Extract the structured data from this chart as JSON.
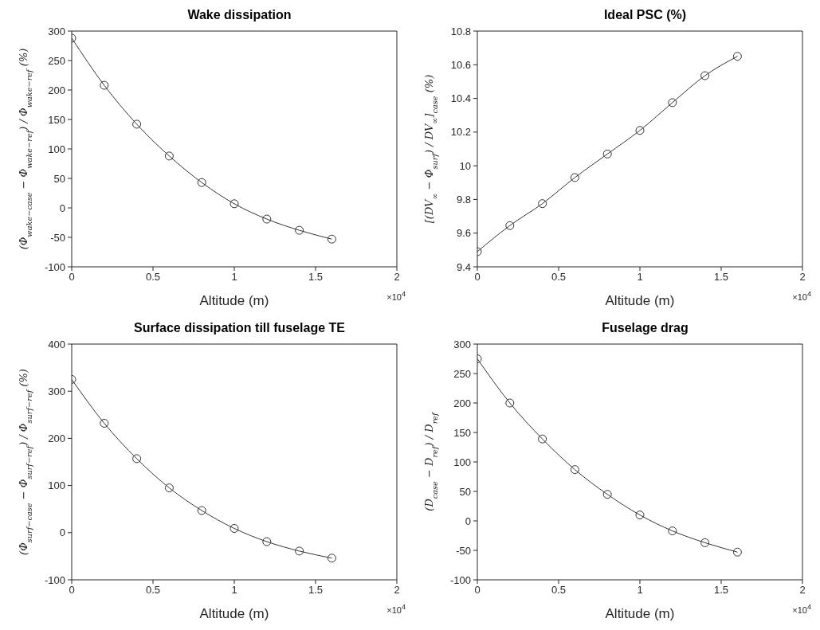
{
  "chart_data": [
    {
      "type": "line",
      "title": "Wake dissipation",
      "xlabel": "Altitude (m)",
      "ylabel": "(Φ$_{wake−case}$ − Φ$_{wake−ref}$) / Φ$_{wake−ref}$ (%)",
      "x": [
        0,
        0.2,
        0.4,
        0.6,
        0.8,
        1,
        1.2,
        1.4,
        1.6
      ],
      "series": [
        {
          "color": "#333333",
          "values": [
            288,
            208,
            142,
            88,
            43,
            7,
            -19,
            -38,
            -53
          ]
        }
      ],
      "xlim": [
        0,
        2
      ],
      "xticks": [
        0,
        0.5,
        1,
        1.5,
        2
      ],
      "ylim": [
        -100,
        300
      ],
      "yticks": [
        -100,
        -50,
        0,
        50,
        100,
        150,
        200,
        250,
        300
      ],
      "marker": "circle",
      "annotations": [
        "×10$^{4}$"
      ]
    },
    {
      "type": "line",
      "title": "Ideal PSC (%)",
      "xlabel": "Altitude (m)",
      "ylabel": "[(DV$_{∞}$ − Φ$_{surf}$) / DV$_{∞}$]$_{case}$ (%)",
      "x": [
        0,
        0.2,
        0.4,
        0.6,
        0.8,
        1,
        1.2,
        1.4,
        1.6
      ],
      "series": [
        {
          "color": "#333333",
          "values": [
            9.49,
            9.645,
            9.775,
            9.93,
            10.07,
            10.21,
            10.375,
            10.535,
            10.65
          ]
        }
      ],
      "xlim": [
        0,
        2
      ],
      "xticks": [
        0,
        0.5,
        1,
        1.5,
        2
      ],
      "ylim": [
        9.4,
        10.8
      ],
      "yticks": [
        9.4,
        9.6,
        9.8,
        10,
        10.2,
        10.4,
        10.6,
        10.8
      ],
      "marker": "circle",
      "annotations": [
        "×10$^{4}$"
      ]
    },
    {
      "type": "line",
      "title": "Surface dissipation till fuselage TE",
      "xlabel": "Altitude (m)",
      "ylabel": "(Φ$_{surf−case}$ − Φ$_{surf−ref}$) / Φ$_{surf−ref}$ (%)",
      "x": [
        0,
        0.2,
        0.4,
        0.6,
        0.8,
        1,
        1.2,
        1.4,
        1.6
      ],
      "series": [
        {
          "color": "#333333",
          "values": [
            325,
            232,
            157,
            95,
            47,
            9,
            -19,
            -39,
            -54
          ]
        }
      ],
      "xlim": [
        0,
        2
      ],
      "xticks": [
        0,
        0.5,
        1,
        1.5,
        2
      ],
      "ylim": [
        -100,
        400
      ],
      "yticks": [
        -100,
        0,
        100,
        200,
        300,
        400
      ],
      "marker": "circle",
      "annotations": [
        "×10$^{4}$"
      ]
    },
    {
      "type": "line",
      "title": "Fuselage drag",
      "xlabel": "Altitude (m)",
      "ylabel": "(D$_{case}$ − D$_{ref}$) / D$_{ref}$",
      "x": [
        0,
        0.2,
        0.4,
        0.6,
        0.8,
        1,
        1.2,
        1.4,
        1.6
      ],
      "series": [
        {
          "color": "#333333",
          "values": [
            275,
            200,
            139,
            87,
            45,
            10,
            -17,
            -37,
            -53
          ]
        }
      ],
      "xlim": [
        0,
        2
      ],
      "xticks": [
        0,
        0.5,
        1,
        1.5,
        2
      ],
      "ylim": [
        -100,
        300
      ],
      "yticks": [
        -100,
        -50,
        0,
        50,
        100,
        150,
        200,
        250,
        300
      ],
      "marker": "circle",
      "annotations": [
        "×10$^{4}$"
      ]
    }
  ]
}
